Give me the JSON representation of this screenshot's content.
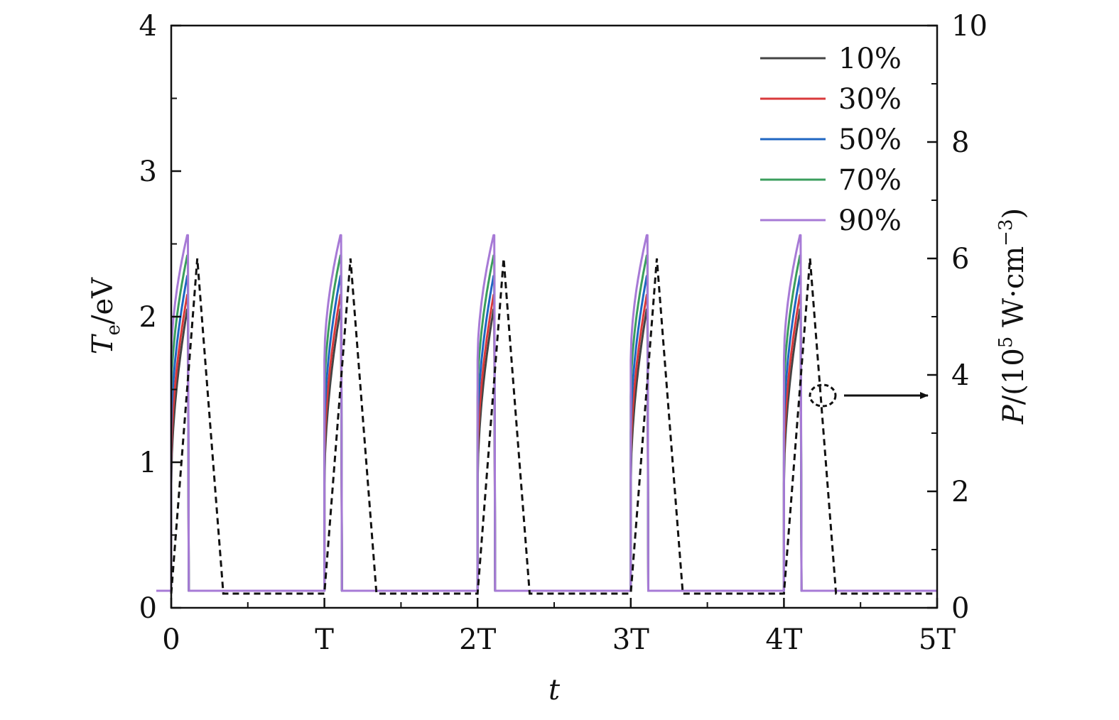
{
  "chart_data": {
    "type": "line",
    "xlabel": "t",
    "ylabel_left": "Te/eV",
    "ylabel_left_main": "T",
    "ylabel_left_sub": "e",
    "ylabel_left_unit": "/eV",
    "ylabel_right": "P/(10^5 W·cm^-3)",
    "ylabel_right_parts": {
      "p": "P",
      "open": "/(10",
      "sup1": "5",
      "mid": " W·cm",
      "sup2": "−3",
      "close": ")"
    },
    "xlim": [
      0,
      5
    ],
    "ylim_left": [
      0,
      4
    ],
    "ylim_right": [
      0,
      10
    ],
    "x_ticks": [
      0,
      1,
      2,
      3,
      4,
      5
    ],
    "x_tick_labels": [
      "0",
      "T",
      "2T",
      "3T",
      "4T",
      "5T"
    ],
    "y_left_ticks": [
      0,
      1,
      2,
      3,
      4
    ],
    "y_left_tick_labels": [
      "0",
      "1",
      "2",
      "3",
      "4"
    ],
    "y_right_ticks": [
      0,
      2,
      4,
      6,
      8,
      10
    ],
    "y_right_tick_labels": [
      "0",
      "2",
      "4",
      "6",
      "8",
      "10"
    ],
    "legend_position": "top-right",
    "period": 1,
    "pulse_width": 0.11,
    "series": [
      {
        "name": "10%",
        "color": "#444444",
        "base": 0.85,
        "peak": 2.05
      },
      {
        "name": "30%",
        "color": "#d9393b",
        "base": 1.0,
        "peak": 2.15
      },
      {
        "name": "50%",
        "color": "#1f66c2",
        "base": 1.2,
        "peak": 2.28
      },
      {
        "name": "70%",
        "color": "#3a9e5c",
        "base": 1.45,
        "peak": 2.42
      },
      {
        "name": "90%",
        "color": "#a77ad6",
        "base": 1.7,
        "peak": 2.56
      }
    ],
    "power_series": {
      "style": "dashed",
      "color": "#111111",
      "axis": "right",
      "x": [
        0,
        0.17,
        0.34,
        1,
        1.17,
        1.34,
        2,
        2.17,
        2.34,
        3,
        3.17,
        3.34,
        4,
        4.17,
        4.34,
        5
      ],
      "y": [
        0,
        6.0,
        0,
        0,
        6.0,
        0,
        0,
        6.0,
        0,
        0,
        6.0,
        0,
        0,
        6.0,
        0,
        0
      ]
    },
    "annotation": {
      "type": "arrow",
      "points_to": "right-axis",
      "anchor_x": 4.25,
      "anchor_y_right": 3.5
    }
  }
}
